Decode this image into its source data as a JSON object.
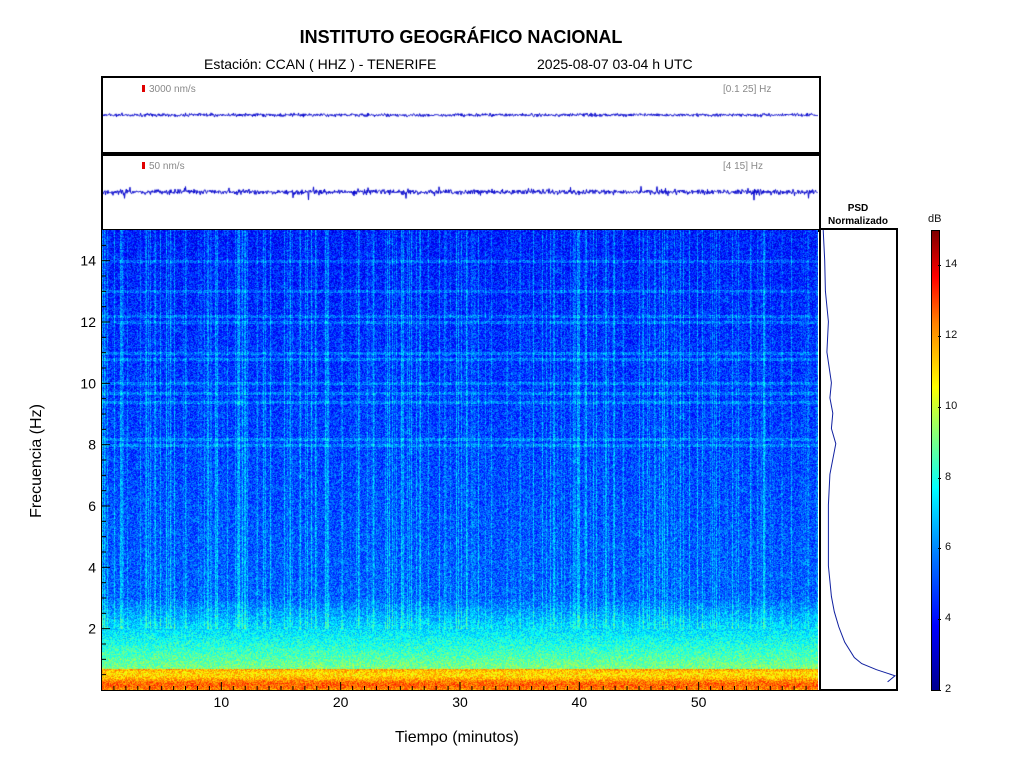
{
  "header": {
    "title": "INSTITUTO GEOGRÁFICO NACIONAL",
    "station": "Estación:  CCAN ( HHZ ) - TENERIFE",
    "datetime": "2025-08-07  03-04 h UTC"
  },
  "panels": {
    "trace1": {
      "scale": "3000 nm/s",
      "band": "[0.1 25] Hz"
    },
    "trace2": {
      "scale": "50 nm/s",
      "band": "[4 15] Hz"
    }
  },
  "psd": {
    "title_line1": "PSD",
    "title_line2": "Normalizado"
  },
  "colorbar": {
    "unit": "dB",
    "ticks": [
      2,
      4,
      6,
      8,
      10,
      12,
      14
    ],
    "range": [
      2,
      15
    ]
  },
  "chart_data": {
    "type": "heatmap",
    "xlabel": "Tiempo (minutos)",
    "ylabel": "Frecuencia (Hz)",
    "xlim": [
      0,
      60
    ],
    "ylim": [
      0,
      15
    ],
    "x_ticks": [
      10,
      20,
      30,
      40,
      50
    ],
    "y_ticks": [
      2,
      4,
      6,
      8,
      10,
      12,
      14
    ],
    "psd_profile": {
      "freq_hz": [
        0.2,
        0.4,
        0.6,
        0.8,
        1.0,
        1.5,
        2.0,
        2.5,
        3.0,
        3.5,
        4.0,
        5.0,
        6.0,
        7.0,
        8.0,
        8.5,
        9.0,
        9.5,
        10.0,
        11.0,
        12.0,
        13.0,
        14.0,
        15.0
      ],
      "normalized": [
        0.9,
        1.0,
        0.75,
        0.55,
        0.45,
        0.32,
        0.24,
        0.18,
        0.14,
        0.12,
        0.1,
        0.1,
        0.1,
        0.12,
        0.2,
        0.14,
        0.16,
        0.12,
        0.14,
        0.08,
        0.1,
        0.06,
        0.05,
        0.03
      ]
    }
  }
}
